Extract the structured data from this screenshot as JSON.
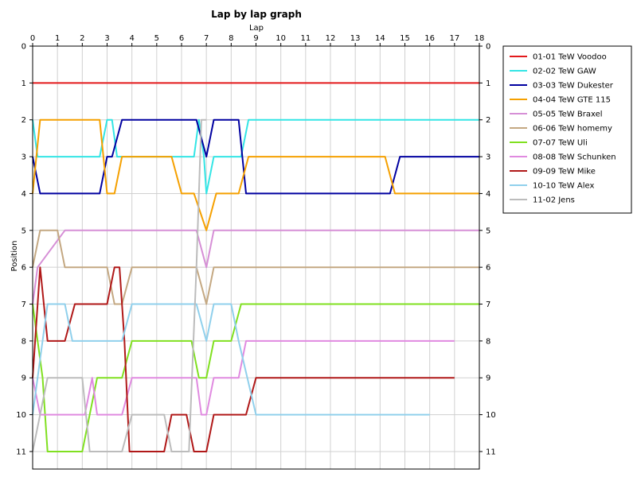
{
  "chart_data": {
    "type": "line",
    "title": "Lap by lap graph",
    "xlabel": "Lap",
    "ylabel": "Position",
    "xlim": [
      0,
      18
    ],
    "ylim": [
      0,
      11
    ],
    "y_inverted": true,
    "grid": true,
    "legend_position": "right",
    "x_ticks": [
      "0",
      "1",
      "2",
      "3",
      "4",
      "5",
      "6",
      "7",
      "8",
      "9",
      "10",
      "11",
      "12",
      "13",
      "14",
      "15",
      "16",
      "17",
      "18"
    ],
    "y_ticks": [
      "0",
      "1",
      "2",
      "3",
      "4",
      "5",
      "6",
      "7",
      "8",
      "9",
      "10",
      "11"
    ],
    "series": [
      {
        "name": "01-01 TeW Voodoo",
        "color": "#e31a1c",
        "points": [
          [
            0,
            1
          ],
          [
            18,
            1
          ]
        ]
      },
      {
        "name": "02-02 TeW GAW",
        "color": "#33e5e5",
        "points": [
          [
            0,
            2
          ],
          [
            0.2,
            3
          ],
          [
            2.7,
            3
          ],
          [
            3.0,
            2
          ],
          [
            3.2,
            2
          ],
          [
            3.4,
            3
          ],
          [
            6.5,
            3
          ],
          [
            6.7,
            2
          ],
          [
            6.9,
            3
          ],
          [
            7.0,
            4
          ],
          [
            7.3,
            3
          ],
          [
            8.4,
            3
          ],
          [
            8.7,
            2
          ],
          [
            18,
            2
          ]
        ]
      },
      {
        "name": "03-03 TeW Dukester",
        "color": "#0000a0",
        "points": [
          [
            0,
            3
          ],
          [
            0.3,
            4
          ],
          [
            2.7,
            4
          ],
          [
            3.0,
            3
          ],
          [
            3.2,
            3
          ],
          [
            3.6,
            2
          ],
          [
            6.6,
            2
          ],
          [
            7.0,
            3
          ],
          [
            7.3,
            2
          ],
          [
            8.3,
            2
          ],
          [
            8.6,
            4
          ],
          [
            14.4,
            4
          ],
          [
            14.8,
            3
          ],
          [
            18,
            3
          ]
        ]
      },
      {
        "name": "04-04 TeW GTE 115",
        "color": "#f5a000",
        "points": [
          [
            0,
            4
          ],
          [
            0.3,
            2
          ],
          [
            2.7,
            2
          ],
          [
            3.0,
            4
          ],
          [
            3.3,
            4
          ],
          [
            3.6,
            3
          ],
          [
            5.6,
            3
          ],
          [
            6.0,
            4
          ],
          [
            6.5,
            4
          ],
          [
            7.0,
            5
          ],
          [
            7.4,
            4
          ],
          [
            8.3,
            4
          ],
          [
            8.7,
            3
          ],
          [
            14.2,
            3
          ],
          [
            14.6,
            4
          ],
          [
            18,
            4
          ]
        ]
      },
      {
        "name": "05-05 TeW Braxel",
        "color": "#d68fd6",
        "points": [
          [
            0,
            7
          ],
          [
            0.2,
            6
          ],
          [
            1.3,
            5
          ],
          [
            6.6,
            5
          ],
          [
            7.0,
            6
          ],
          [
            7.3,
            5
          ],
          [
            18,
            5
          ]
        ]
      },
      {
        "name": "06-06 TeW homemy",
        "color": "#c4a882",
        "points": [
          [
            0,
            6
          ],
          [
            0.3,
            5
          ],
          [
            1.0,
            5
          ],
          [
            1.3,
            6
          ],
          [
            3.0,
            6
          ],
          [
            3.3,
            7
          ],
          [
            3.6,
            7
          ],
          [
            4.0,
            6
          ],
          [
            6.6,
            6
          ],
          [
            7.0,
            7
          ],
          [
            7.3,
            6
          ],
          [
            18,
            6
          ]
        ]
      },
      {
        "name": "07-07 TeW  Uli",
        "color": "#80e020",
        "points": [
          [
            0,
            7
          ],
          [
            0.4,
            9
          ],
          [
            0.6,
            11
          ],
          [
            2.0,
            11
          ],
          [
            2.6,
            9
          ],
          [
            3.6,
            9
          ],
          [
            4.0,
            8
          ],
          [
            6.4,
            8
          ],
          [
            6.7,
            9
          ],
          [
            7.0,
            9
          ],
          [
            7.3,
            8
          ],
          [
            8.0,
            8
          ],
          [
            8.4,
            7
          ],
          [
            18,
            7
          ]
        ]
      },
      {
        "name": "08-08 TeW Schunken",
        "color": "#e08ae0",
        "points": [
          [
            0,
            9
          ],
          [
            0.3,
            10
          ],
          [
            2.1,
            10
          ],
          [
            2.4,
            9
          ],
          [
            2.6,
            10
          ],
          [
            3.6,
            10
          ],
          [
            4.0,
            9
          ],
          [
            6.6,
            9
          ],
          [
            6.8,
            10
          ],
          [
            7.0,
            10
          ],
          [
            7.3,
            9
          ],
          [
            8.3,
            9
          ],
          [
            8.6,
            8
          ],
          [
            17,
            8
          ]
        ]
      },
      {
        "name": "09-09 TeW Mike",
        "color": "#b01818",
        "points": [
          [
            0,
            9
          ],
          [
            0.3,
            6
          ],
          [
            0.6,
            8
          ],
          [
            1.3,
            8
          ],
          [
            1.7,
            7
          ],
          [
            3.0,
            7
          ],
          [
            3.3,
            6
          ],
          [
            3.5,
            6
          ],
          [
            3.7,
            8
          ],
          [
            3.9,
            11
          ],
          [
            5.3,
            11
          ],
          [
            5.6,
            10
          ],
          [
            6.2,
            10
          ],
          [
            6.5,
            11
          ],
          [
            7.0,
            11
          ],
          [
            7.3,
            10
          ],
          [
            8.6,
            10
          ],
          [
            9.0,
            9
          ],
          [
            17,
            9
          ]
        ]
      },
      {
        "name": "10-10 TeW Alex",
        "color": "#90d0ec",
        "points": [
          [
            0,
            10
          ],
          [
            0.6,
            7
          ],
          [
            1.3,
            7
          ],
          [
            1.6,
            8
          ],
          [
            3.6,
            8
          ],
          [
            4.0,
            7
          ],
          [
            6.6,
            7
          ],
          [
            7.0,
            8
          ],
          [
            7.3,
            7
          ],
          [
            8.0,
            7
          ],
          [
            8.3,
            8
          ],
          [
            9.0,
            10
          ],
          [
            16,
            10
          ]
        ]
      },
      {
        "name": "11-02 Jens",
        "color": "#bcbcbc",
        "points": [
          [
            0,
            11
          ],
          [
            0.6,
            9
          ],
          [
            2.0,
            9
          ],
          [
            2.3,
            11
          ],
          [
            3.6,
            11
          ],
          [
            4.0,
            10
          ],
          [
            5.3,
            10
          ],
          [
            5.6,
            11
          ],
          [
            6.3,
            11
          ],
          [
            6.6,
            6
          ],
          [
            6.8,
            2
          ],
          [
            7.0,
            2
          ]
        ]
      }
    ]
  }
}
